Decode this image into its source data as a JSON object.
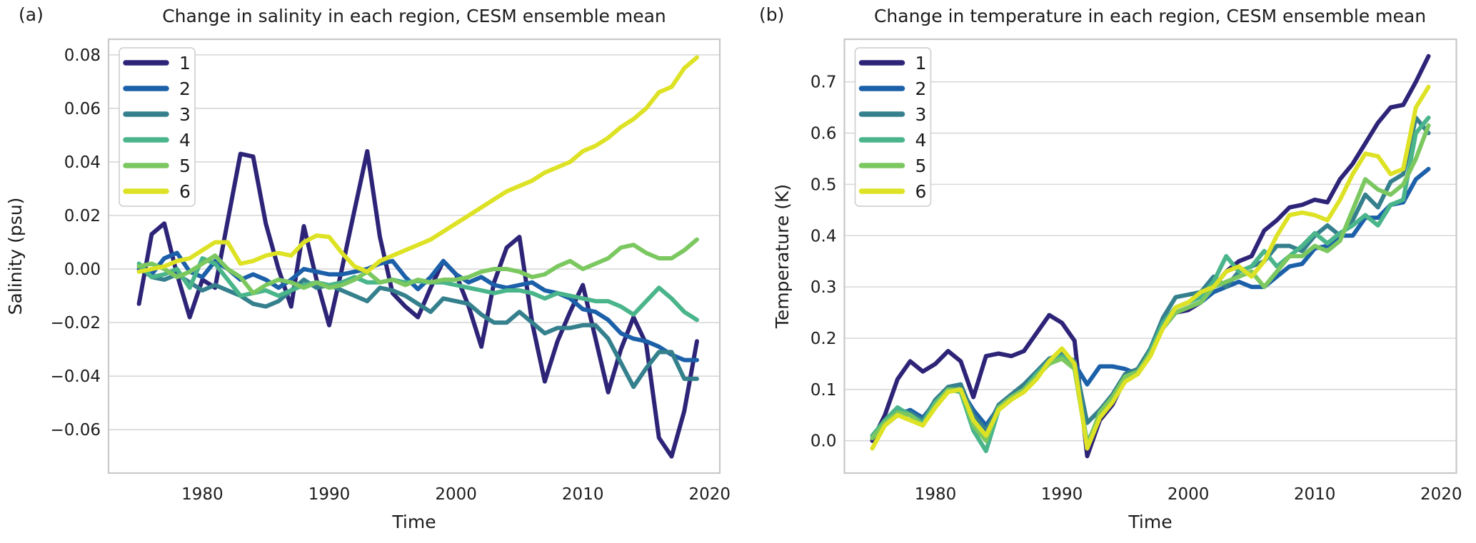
{
  "panels": [
    {
      "label": "(a)"
    },
    {
      "label": "(b)"
    }
  ],
  "chart_data": [
    {
      "type": "line",
      "title": "Change in salinity in each region, CESM ensemble mean",
      "xlabel": "Time",
      "ylabel": "Salinity (psu)",
      "legend_position": "upper-left",
      "grid": "horizontal",
      "xlim": [
        1972.6,
        2020.8
      ],
      "ylim": [
        -0.0762,
        0.0858
      ],
      "xticks": [
        {
          "label": "1980",
          "value": 1980
        },
        {
          "label": "1990",
          "value": 1990
        },
        {
          "label": "2000",
          "value": 2000
        },
        {
          "label": "2010",
          "value": 2010
        },
        {
          "label": "2020",
          "value": 2020
        }
      ],
      "yticks": [
        {
          "label": "0.08",
          "value": 0.08
        },
        {
          "label": "0.06",
          "value": 0.06
        },
        {
          "label": "0.04",
          "value": 0.04
        },
        {
          "label": "0.02",
          "value": 0.02
        },
        {
          "label": "0.00",
          "value": 0.0
        },
        {
          "label": "−0.02",
          "value": -0.02
        },
        {
          "label": "−0.04",
          "value": -0.04
        },
        {
          "label": "−0.06",
          "value": -0.06
        }
      ],
      "x": [
        1975,
        1976,
        1977,
        1978,
        1979,
        1980,
        1981,
        1982,
        1983,
        1984,
        1985,
        1986,
        1987,
        1988,
        1989,
        1990,
        1991,
        1992,
        1993,
        1994,
        1995,
        1996,
        1997,
        1998,
        1999,
        2000,
        2001,
        2002,
        2003,
        2004,
        2005,
        2006,
        2007,
        2008,
        2009,
        2010,
        2011,
        2012,
        2013,
        2014,
        2015,
        2016,
        2017,
        2018,
        2019
      ],
      "series": [
        {
          "name": "1",
          "color": "#2d2478",
          "values": [
            -0.013,
            0.013,
            0.017,
            -0.002,
            -0.018,
            -0.004,
            -0.007,
            0.018,
            0.043,
            0.042,
            0.017,
            0.0,
            -0.014,
            0.016,
            -0.004,
            -0.021,
            0.0,
            0.022,
            0.044,
            0.012,
            -0.009,
            -0.014,
            -0.018,
            -0.007,
            0.003,
            -0.002,
            -0.014,
            -0.029,
            -0.005,
            0.008,
            0.012,
            -0.02,
            -0.042,
            -0.027,
            -0.016,
            -0.006,
            -0.026,
            -0.046,
            -0.03,
            -0.018,
            -0.028,
            -0.063,
            -0.07,
            -0.053,
            -0.027
          ]
        },
        {
          "name": "2",
          "color": "#1b60a9",
          "values": [
            0.0,
            -0.002,
            0.004,
            0.006,
            -0.001,
            -0.003,
            0.003,
            0.0,
            -0.004,
            -0.002,
            -0.004,
            -0.007,
            -0.004,
            0.0,
            -0.001,
            -0.002,
            -0.002,
            -0.001,
            0.0,
            0.002,
            0.003,
            -0.003,
            -0.0075,
            -0.003,
            0.003,
            -0.002,
            -0.005,
            -0.003,
            -0.006,
            -0.007,
            -0.006,
            -0.005,
            -0.008,
            -0.009,
            -0.011,
            -0.015,
            -0.016,
            -0.019,
            -0.024,
            -0.026,
            -0.027,
            -0.029,
            -0.032,
            -0.034,
            -0.034
          ]
        },
        {
          "name": "3",
          "color": "#35808d",
          "values": [
            0.001,
            -0.003,
            -0.004,
            -0.002,
            -0.005,
            -0.008,
            -0.006,
            -0.008,
            -0.01,
            -0.013,
            -0.014,
            -0.012,
            -0.008,
            -0.004,
            -0.007,
            -0.006,
            -0.008,
            -0.01,
            -0.012,
            -0.007,
            -0.008,
            -0.01,
            -0.013,
            -0.016,
            -0.011,
            -0.012,
            -0.013,
            -0.017,
            -0.02,
            -0.02,
            -0.016,
            -0.02,
            -0.024,
            -0.022,
            -0.022,
            -0.021,
            -0.021,
            -0.026,
            -0.035,
            -0.044,
            -0.037,
            -0.031,
            -0.031,
            -0.041,
            -0.041
          ]
        },
        {
          "name": "4",
          "color": "#4ab58a",
          "values": [
            0.002,
            -0.003,
            -0.002,
            0.0,
            -0.007,
            0.004,
            0.002,
            -0.004,
            -0.01,
            -0.009,
            -0.008,
            -0.01,
            -0.008,
            -0.006,
            -0.005,
            -0.006,
            -0.005,
            -0.003,
            -0.005,
            -0.005,
            -0.004,
            -0.005,
            -0.0045,
            -0.005,
            -0.005,
            -0.006,
            -0.007,
            -0.008,
            -0.009,
            -0.008,
            -0.008,
            -0.009,
            -0.011,
            -0.009,
            -0.01,
            -0.011,
            -0.012,
            -0.012,
            -0.014,
            -0.017,
            -0.012,
            -0.007,
            -0.011,
            -0.016,
            -0.019
          ]
        },
        {
          "name": "5",
          "color": "#7cc860",
          "values": [
            0.001,
            0.002,
            0.0,
            -0.003,
            -0.001,
            0.002,
            0.005,
            0.0,
            -0.003,
            -0.009,
            -0.006,
            -0.004,
            -0.005,
            -0.007,
            -0.005,
            -0.007,
            -0.006,
            -0.004,
            -0.001,
            -0.005,
            -0.004,
            -0.006,
            -0.004,
            -0.005,
            -0.004,
            -0.004,
            -0.003,
            -0.001,
            0.0,
            0.0,
            -0.001,
            -0.003,
            -0.002,
            0.001,
            0.003,
            0.0,
            0.002,
            0.004,
            0.008,
            0.009,
            0.006,
            0.004,
            0.004,
            0.007,
            0.011
          ]
        },
        {
          "name": "6",
          "color": "#dde225",
          "values": [
            -0.001,
            0.0,
            0.001,
            0.003,
            0.004,
            0.007,
            0.01,
            0.01,
            0.002,
            0.003,
            0.005,
            0.006,
            0.005,
            0.01,
            0.0125,
            0.012,
            0.006,
            0.001,
            -0.001,
            0.003,
            0.005,
            0.007,
            0.009,
            0.011,
            0.014,
            0.017,
            0.02,
            0.023,
            0.026,
            0.029,
            0.031,
            0.033,
            0.036,
            0.038,
            0.04,
            0.044,
            0.046,
            0.049,
            0.053,
            0.056,
            0.06,
            0.066,
            0.068,
            0.075,
            0.079
          ]
        }
      ]
    },
    {
      "type": "line",
      "title": "Change in temperature in each region, CESM ensemble mean",
      "xlabel": "Time",
      "ylabel": "Temperature (K)",
      "legend_position": "upper-left",
      "grid": "horizontal",
      "xlim": [
        1972.8,
        2021.2
      ],
      "ylim": [
        -0.063,
        0.783
      ],
      "xticks": [
        {
          "label": "1980",
          "value": 1980
        },
        {
          "label": "1990",
          "value": 1990
        },
        {
          "label": "2000",
          "value": 2000
        },
        {
          "label": "2010",
          "value": 2010
        },
        {
          "label": "2020",
          "value": 2020
        }
      ],
      "yticks": [
        {
          "label": "0.7",
          "value": 0.7
        },
        {
          "label": "0.6",
          "value": 0.6
        },
        {
          "label": "0.5",
          "value": 0.5
        },
        {
          "label": "0.4",
          "value": 0.4
        },
        {
          "label": "0.3",
          "value": 0.3
        },
        {
          "label": "0.2",
          "value": 0.2
        },
        {
          "label": "0.1",
          "value": 0.1
        },
        {
          "label": "0.0",
          "value": 0.0
        }
      ],
      "x": [
        1975,
        1976,
        1977,
        1978,
        1979,
        1980,
        1981,
        1982,
        1983,
        1984,
        1985,
        1986,
        1987,
        1988,
        1989,
        1990,
        1991,
        1992,
        1993,
        1994,
        1995,
        1996,
        1997,
        1998,
        1999,
        2000,
        2001,
        2002,
        2003,
        2004,
        2005,
        2006,
        2007,
        2008,
        2009,
        2010,
        2011,
        2012,
        2013,
        2014,
        2015,
        2016,
        2017,
        2018,
        2019
      ],
      "series": [
        {
          "name": "1",
          "color": "#2d2478",
          "values": [
            0.0,
            0.05,
            0.12,
            0.155,
            0.135,
            0.15,
            0.175,
            0.155,
            0.085,
            0.165,
            0.17,
            0.165,
            0.175,
            0.21,
            0.245,
            0.23,
            0.195,
            -0.03,
            0.04,
            0.07,
            0.12,
            0.14,
            0.17,
            0.22,
            0.25,
            0.255,
            0.27,
            0.3,
            0.33,
            0.35,
            0.36,
            0.41,
            0.43,
            0.455,
            0.46,
            0.47,
            0.465,
            0.51,
            0.54,
            0.58,
            0.62,
            0.65,
            0.655,
            0.7,
            0.75
          ]
        },
        {
          "name": "2",
          "color": "#1b60a9",
          "values": [
            0.005,
            0.03,
            0.05,
            0.06,
            0.045,
            0.075,
            0.1,
            0.1,
            0.06,
            0.03,
            0.065,
            0.085,
            0.105,
            0.13,
            0.15,
            0.165,
            0.15,
            0.11,
            0.145,
            0.145,
            0.14,
            0.13,
            0.17,
            0.22,
            0.25,
            0.26,
            0.27,
            0.29,
            0.3,
            0.31,
            0.3,
            0.3,
            0.32,
            0.34,
            0.345,
            0.375,
            0.38,
            0.4,
            0.4,
            0.435,
            0.435,
            0.46,
            0.465,
            0.51,
            0.53
          ]
        },
        {
          "name": "3",
          "color": "#35808d",
          "values": [
            0.005,
            0.035,
            0.06,
            0.055,
            0.04,
            0.08,
            0.105,
            0.11,
            0.05,
            0.02,
            0.07,
            0.09,
            0.11,
            0.135,
            0.16,
            0.17,
            0.155,
            0.035,
            0.06,
            0.09,
            0.13,
            0.14,
            0.18,
            0.24,
            0.28,
            0.285,
            0.29,
            0.32,
            0.3,
            0.33,
            0.34,
            0.35,
            0.38,
            0.38,
            0.37,
            0.4,
            0.42,
            0.4,
            0.43,
            0.48,
            0.455,
            0.505,
            0.52,
            0.63,
            0.6
          ]
        },
        {
          "name": "4",
          "color": "#4ab58a",
          "values": [
            0.01,
            0.04,
            0.065,
            0.05,
            0.035,
            0.075,
            0.1,
            0.095,
            0.02,
            -0.02,
            0.06,
            0.08,
            0.1,
            0.13,
            0.155,
            0.165,
            0.145,
            -0.005,
            0.05,
            0.08,
            0.12,
            0.13,
            0.175,
            0.23,
            0.26,
            0.27,
            0.28,
            0.31,
            0.36,
            0.33,
            0.34,
            0.37,
            0.34,
            0.36,
            0.38,
            0.405,
            0.385,
            0.405,
            0.42,
            0.44,
            0.42,
            0.46,
            0.47,
            0.6,
            0.63
          ]
        },
        {
          "name": "5",
          "color": "#7cc860",
          "values": [
            0.005,
            0.035,
            0.055,
            0.05,
            0.03,
            0.07,
            0.1,
            0.1,
            0.03,
            0.0,
            0.065,
            0.085,
            0.1,
            0.125,
            0.15,
            0.16,
            0.14,
            -0.01,
            0.055,
            0.085,
            0.125,
            0.135,
            0.17,
            0.22,
            0.25,
            0.26,
            0.27,
            0.3,
            0.31,
            0.32,
            0.33,
            0.3,
            0.33,
            0.36,
            0.36,
            0.38,
            0.37,
            0.39,
            0.45,
            0.51,
            0.49,
            0.48,
            0.5,
            0.55,
            0.615
          ]
        },
        {
          "name": "6",
          "color": "#dde225",
          "values": [
            -0.015,
            0.03,
            0.05,
            0.04,
            0.03,
            0.065,
            0.095,
            0.1,
            0.04,
            0.01,
            0.06,
            0.08,
            0.095,
            0.12,
            0.155,
            0.18,
            0.15,
            -0.015,
            0.045,
            0.075,
            0.115,
            0.13,
            0.165,
            0.22,
            0.26,
            0.27,
            0.29,
            0.3,
            0.33,
            0.34,
            0.32,
            0.35,
            0.4,
            0.44,
            0.445,
            0.44,
            0.43,
            0.47,
            0.52,
            0.56,
            0.555,
            0.52,
            0.53,
            0.65,
            0.69
          ]
        }
      ]
    }
  ]
}
